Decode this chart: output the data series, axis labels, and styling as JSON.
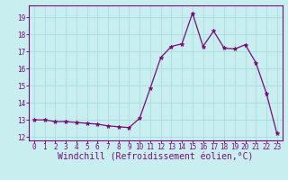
{
  "x": [
    0,
    1,
    2,
    3,
    4,
    5,
    6,
    7,
    8,
    9,
    10,
    11,
    12,
    13,
    14,
    15,
    16,
    17,
    18,
    19,
    20,
    21,
    22,
    23
  ],
  "y": [
    13.0,
    13.0,
    12.9,
    12.9,
    12.85,
    12.8,
    12.75,
    12.65,
    12.6,
    12.55,
    13.1,
    14.85,
    16.65,
    17.3,
    17.45,
    19.25,
    17.3,
    18.2,
    17.2,
    17.15,
    17.4,
    16.35,
    14.55,
    12.2
  ],
  "line_color": "#7B0A7B",
  "marker": "*",
  "marker_size": 3.5,
  "bg_color": "#c8eef0",
  "grid_color": "#aadddd",
  "ylim": [
    11.8,
    19.7
  ],
  "xlim": [
    -0.5,
    23.5
  ],
  "yticks": [
    12,
    13,
    14,
    15,
    16,
    17,
    18,
    19
  ],
  "xticks": [
    0,
    1,
    2,
    3,
    4,
    5,
    6,
    7,
    8,
    9,
    10,
    11,
    12,
    13,
    14,
    15,
    16,
    17,
    18,
    19,
    20,
    21,
    22,
    23
  ],
  "tick_fontsize": 5.5,
  "xlabel_fontsize": 7.0,
  "xlabel": "Windchill (Refroidissement éolien,°C)"
}
